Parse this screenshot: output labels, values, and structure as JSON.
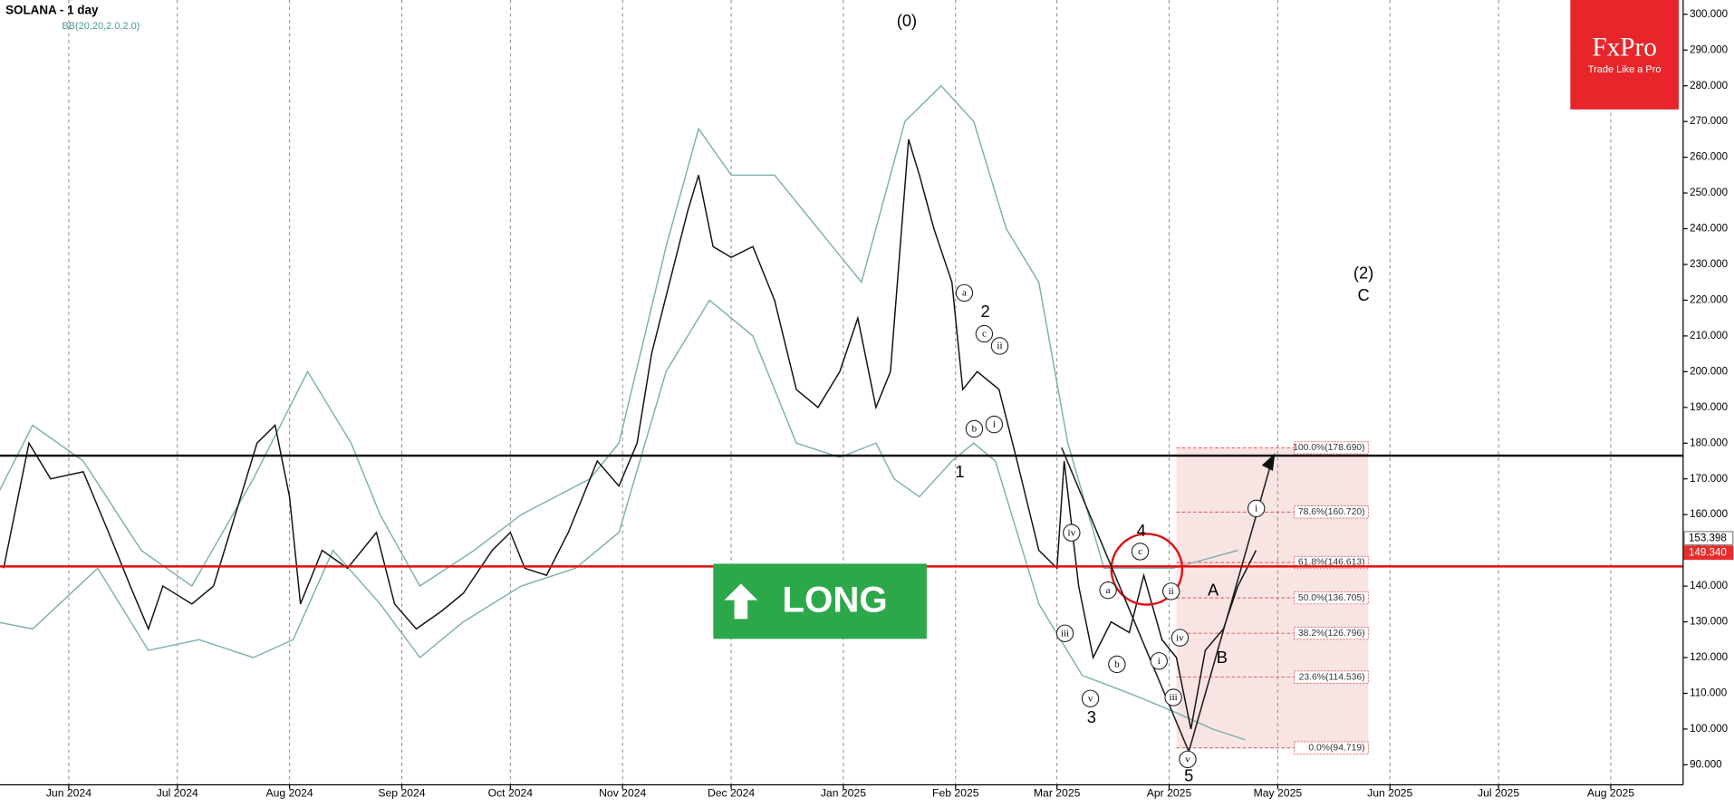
{
  "chart_data": {
    "type": "line",
    "title": "SOLANA - 1 day",
    "indicator": "BB(20,20,2.0,2.0)",
    "xlim": [
      "2024-05-13",
      "2025-08-21"
    ],
    "ylim": [
      84.4,
      304
    ],
    "grid": "x",
    "xticks": [
      {
        "value": "2024-06-01",
        "label": "Jun 2024"
      },
      {
        "value": "2024-07-01",
        "label": "Jul 2024"
      },
      {
        "value": "2024-08-01",
        "label": "Aug 2024"
      },
      {
        "value": "2024-09-01",
        "label": "Sep 2024"
      },
      {
        "value": "2024-10-01",
        "label": "Oct 2024"
      },
      {
        "value": "2024-11-01",
        "label": "Nov 2024"
      },
      {
        "value": "2024-12-01",
        "label": "Dec 2024"
      },
      {
        "value": "2025-01-01",
        "label": "Jan 2025"
      },
      {
        "value": "2025-02-01",
        "label": "Feb 2025"
      },
      {
        "value": "2025-03-01",
        "label": "Mar 2025"
      },
      {
        "value": "2025-04-01",
        "label": "Apr 2025"
      },
      {
        "value": "2025-05-01",
        "label": "May 2025"
      },
      {
        "value": "2025-06-01",
        "label": "Jun 2025"
      },
      {
        "value": "2025-07-01",
        "label": "Jul 2025"
      },
      {
        "value": "2025-08-01",
        "label": "Aug 2025"
      }
    ],
    "yticks": [
      {
        "value": 90,
        "label": "90.000"
      },
      {
        "value": 100,
        "label": "100.000"
      },
      {
        "value": 110,
        "label": "110.000"
      },
      {
        "value": 120,
        "label": "120.000"
      },
      {
        "value": 130,
        "label": "130.000"
      },
      {
        "value": 140,
        "label": "140.000"
      },
      {
        "value": 150,
        "label": "150.000"
      },
      {
        "value": 160,
        "label": "160.000"
      },
      {
        "value": 170,
        "label": "170.000"
      },
      {
        "value": 180,
        "label": "180.000"
      },
      {
        "value": 190,
        "label": "190.000"
      },
      {
        "value": 200,
        "label": "200.000"
      },
      {
        "value": 210,
        "label": "210.000"
      },
      {
        "value": 220,
        "label": "220.000"
      },
      {
        "value": 230,
        "label": "230.000"
      },
      {
        "value": 240,
        "label": "240.000"
      },
      {
        "value": 250,
        "label": "250.000"
      },
      {
        "value": 260,
        "label": "260.000"
      },
      {
        "value": 270,
        "label": "270.000"
      },
      {
        "value": 280,
        "label": "280.000"
      },
      {
        "value": 290,
        "label": "290.000"
      },
      {
        "value": 300,
        "label": "300.000"
      }
    ],
    "series": [
      {
        "color": "#7fb0b0",
        "x": [
          "2024-05-12",
          "2024-05-22",
          "2024-06-05",
          "2024-06-21",
          "2024-07-05",
          "2024-07-22",
          "2024-08-06",
          "2024-08-18",
          "2024-08-26",
          "2024-09-06",
          "2024-09-21",
          "2024-10-04",
          "2024-10-23",
          "2024-10-31",
          "2024-11-13",
          "2024-11-22",
          "2024-12-01",
          "2024-12-13",
          "2024-12-25",
          "2025-01-06",
          "2025-01-18",
          "2025-01-28",
          "2025-02-06",
          "2025-02-15",
          "2025-02-24",
          "2025-03-04",
          "2025-03-14",
          "2025-03-23",
          "2025-04-02",
          "2025-04-20"
        ],
        "values": [
          165,
          185,
          175,
          150,
          140,
          170,
          200,
          180,
          160,
          140,
          150,
          160,
          170,
          180,
          235,
          268,
          255,
          255,
          240,
          225,
          270,
          280,
          270,
          240,
          225,
          180,
          145,
          145,
          145,
          150
        ]
      },
      {
        "color": "#7fb0b0",
        "x": [
          "2024-05-12",
          "2024-05-22",
          "2024-06-09",
          "2024-06-23",
          "2024-07-07",
          "2024-07-22",
          "2024-08-02",
          "2024-08-13",
          "2024-08-26",
          "2024-09-06",
          "2024-09-18",
          "2024-10-04",
          "2024-10-19",
          "2024-10-31",
          "2024-11-13",
          "2024-11-25",
          "2024-12-07",
          "2024-12-19",
          "2024-12-31",
          "2025-01-10",
          "2025-01-15",
          "2025-01-22",
          "2025-01-31",
          "2025-02-06",
          "2025-02-12",
          "2025-02-24",
          "2025-03-08",
          "2025-03-21",
          "2025-04-02",
          "2025-04-13",
          "2025-04-22"
        ],
        "values": [
          130,
          128,
          145,
          122,
          125,
          120,
          125,
          150,
          135,
          120,
          130,
          140,
          145,
          155,
          200,
          220,
          210,
          180,
          176,
          180,
          170,
          165,
          175,
          180,
          175,
          135,
          115,
          110,
          105,
          100,
          97
        ]
      },
      {
        "color": "#111111",
        "x": [
          "2024-05-14",
          "2024-05-21",
          "2024-05-27",
          "2024-06-05",
          "2024-06-12",
          "2024-06-18",
          "2024-06-23",
          "2024-06-27",
          "2024-07-05",
          "2024-07-11",
          "2024-07-17",
          "2024-07-23",
          "2024-07-28",
          "2024-08-01",
          "2024-08-04",
          "2024-08-10",
          "2024-08-17",
          "2024-08-25",
          "2024-08-30",
          "2024-09-05",
          "2024-09-12",
          "2024-09-18",
          "2024-09-26",
          "2024-10-01",
          "2024-10-05",
          "2024-10-11",
          "2024-10-17",
          "2024-10-25",
          "2024-10-31",
          "2024-11-05",
          "2024-11-09",
          "2024-11-14",
          "2024-11-19",
          "2024-11-22",
          "2024-11-26",
          "2024-12-01",
          "2024-12-07",
          "2024-12-13",
          "2024-12-19",
          "2024-12-25",
          "2024-12-31",
          "2025-01-05",
          "2025-01-10",
          "2025-01-14",
          "2025-01-19",
          "2025-01-22",
          "2025-01-26",
          "2025-01-31",
          "2025-02-03",
          "2025-02-07",
          "2025-02-13",
          "2025-02-18",
          "2025-02-24",
          "2025-03-01",
          "2025-03-03",
          "2025-03-07",
          "2025-03-11",
          "2025-03-16",
          "2025-03-21",
          "2025-03-25",
          "2025-03-30",
          "2025-04-03",
          "2025-04-07",
          "2025-04-11",
          "2025-04-16",
          "2025-04-20",
          "2025-04-25"
        ],
        "values": [
          145,
          180,
          170,
          172,
          155,
          140,
          128,
          140,
          135,
          140,
          160,
          180,
          185,
          165,
          135,
          150,
          145,
          155,
          135,
          128,
          133,
          138,
          150,
          155,
          145,
          143,
          155,
          175,
          168,
          180,
          205,
          225,
          245,
          255,
          235,
          232,
          235,
          220,
          195,
          190,
          200,
          215,
          190,
          200,
          265,
          255,
          240,
          225,
          195,
          200,
          195,
          175,
          150,
          145,
          175,
          140,
          120,
          130,
          127,
          143,
          125,
          120,
          100,
          122,
          128,
          140,
          150
        ]
      }
    ],
    "levels": [
      {
        "value": 176.5,
        "color": "#000000"
      },
      {
        "value": 145.5,
        "color": "#e01010"
      }
    ],
    "price_labels": [
      {
        "value": 153.398,
        "label": "153.398",
        "color": "#ffffff"
      },
      {
        "value": 149.34,
        "label": "149.340",
        "color": "#e82c2c"
      }
    ],
    "fibonacci": {
      "start": "2025-04-03",
      "end": "2025-05-26",
      "levels": [
        {
          "value": 178.69,
          "label": "100.0%(178.690)"
        },
        {
          "value": 160.72,
          "label": "78.6%(160.720)"
        },
        {
          "value": 146.613,
          "label": "61.8%(146.613)"
        },
        {
          "value": 136.705,
          "label": "50.0%(136.705)"
        },
        {
          "value": 126.796,
          "label": "38.2%(126.796)"
        },
        {
          "value": 114.536,
          "label": "23.6%(114.536)"
        },
        {
          "value": 94.719,
          "label": "0.0%(94.719)"
        }
      ]
    },
    "annotations": [
      "(0)",
      "2",
      "1",
      "3",
      "4",
      "5",
      "A",
      "B",
      "(2)",
      "C"
    ],
    "circled_labels": [
      "a",
      "c",
      "ii",
      "b",
      "i",
      "iv",
      "iii",
      "v",
      "a",
      "b",
      "c",
      "ii",
      "iv",
      "i",
      "iii",
      "v",
      "i"
    ],
    "signal": "LONG",
    "brand": {
      "name": "FxPro",
      "slogan": "Trade Like a Pro"
    }
  }
}
